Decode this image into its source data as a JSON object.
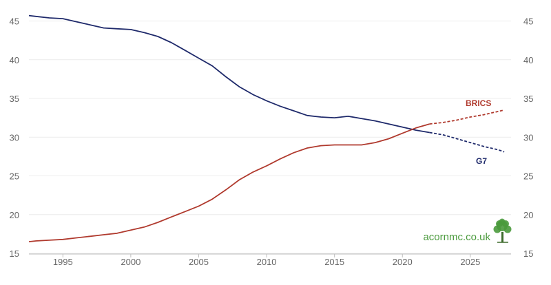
{
  "chart_data": {
    "type": "line",
    "title": "",
    "xlabel": "",
    "ylabel": "",
    "xlim": [
      1992.5,
      2028
    ],
    "ylim": [
      15,
      47
    ],
    "x_ticks": [
      1995,
      2000,
      2005,
      2010,
      2015,
      2020,
      2025
    ],
    "x_tick_labels": [
      "1995",
      "2000",
      "2005",
      "2010",
      "2015",
      "2020",
      "2025"
    ],
    "y_ticks": [
      15,
      20,
      25,
      30,
      35,
      40,
      45
    ],
    "y_tick_labels": [
      "15",
      "20",
      "25",
      "30",
      "35",
      "40",
      "45"
    ],
    "grid": "horizontal",
    "legend": "inline labels at line ends",
    "projection_start": 2022,
    "series": [
      {
        "name": "G7",
        "color": "#1f2a6b",
        "x": [
          1992.5,
          1993,
          1994,
          1995,
          1996,
          1997,
          1998,
          1999,
          2000,
          2001,
          2002,
          2003,
          2004,
          2005,
          2006,
          2007,
          2008,
          2009,
          2010,
          2011,
          2012,
          2013,
          2014,
          2015,
          2016,
          2017,
          2018,
          2019,
          2020,
          2021,
          2022,
          2023,
          2024,
          2025,
          2026,
          2027,
          2027.5
        ],
        "values": [
          45.7,
          45.6,
          45.4,
          45.3,
          44.9,
          44.5,
          44.1,
          44.0,
          43.9,
          43.5,
          43.0,
          42.2,
          41.2,
          40.2,
          39.2,
          37.8,
          36.5,
          35.5,
          34.7,
          34.0,
          33.4,
          32.8,
          32.6,
          32.5,
          32.7,
          32.4,
          32.1,
          31.7,
          31.3,
          30.9,
          30.6,
          30.3,
          29.8,
          29.3,
          28.8,
          28.4,
          28.1
        ]
      },
      {
        "name": "BRICS",
        "color": "#b03a2e",
        "x": [
          1992.5,
          1993,
          1994,
          1995,
          1996,
          1997,
          1998,
          1999,
          2000,
          2001,
          2002,
          2003,
          2004,
          2005,
          2006,
          2007,
          2008,
          2009,
          2010,
          2011,
          2012,
          2013,
          2014,
          2015,
          2016,
          2017,
          2018,
          2019,
          2020,
          2021,
          2022,
          2023,
          2024,
          2025,
          2026,
          2027,
          2027.5
        ],
        "values": [
          16.5,
          16.6,
          16.7,
          16.8,
          17.0,
          17.2,
          17.4,
          17.6,
          18.0,
          18.4,
          19.0,
          19.7,
          20.4,
          21.1,
          22.0,
          23.2,
          24.5,
          25.5,
          26.3,
          27.2,
          28.0,
          28.6,
          28.9,
          29.0,
          29.0,
          29.0,
          29.3,
          29.8,
          30.5,
          31.2,
          31.7,
          31.9,
          32.2,
          32.6,
          32.9,
          33.3,
          33.5
        ]
      }
    ]
  },
  "watermark": {
    "text": "acornmc.co.uk",
    "color": "#4a9a3c",
    "icon": "oak-tree-icon"
  }
}
